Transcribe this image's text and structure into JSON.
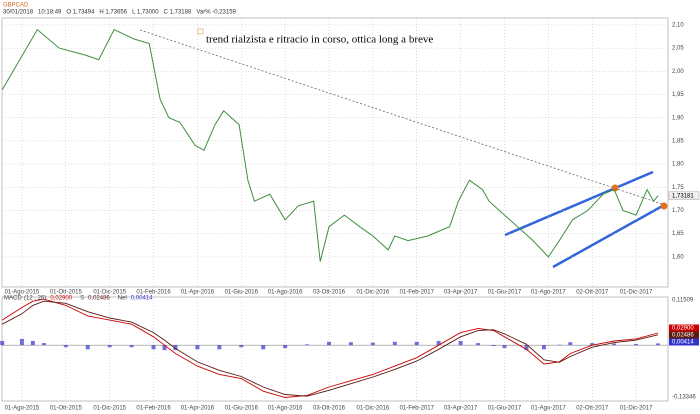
{
  "header": {
    "symbol": "GBPCAD",
    "fields": [
      "30/01/2018",
      "10:18:49",
      "O 1,73494",
      "H 1,73656",
      "L 1,73000",
      "C 1,73188",
      "Var% -0,23159"
    ]
  },
  "annotation": "trend rialzista e ritracio in corso, ottica long a breve",
  "chart_data": [
    {
      "type": "line",
      "xlim": [
        -0.909,
        29.455
      ],
      "xticks": [
        {
          "value": 0,
          "label": "01-Ago-2015"
        },
        {
          "value": 2,
          "label": "01-Ott-2015"
        },
        {
          "value": 4,
          "label": "01-Dic-2015"
        },
        {
          "value": 6,
          "label": "01-Feb-2016"
        },
        {
          "value": 8,
          "label": "01-Apr-2016"
        },
        {
          "value": 10,
          "label": "01-Giu-2016"
        },
        {
          "value": 12,
          "label": "01-Ago-2016"
        },
        {
          "value": 14,
          "label": "03-Ott-2016"
        },
        {
          "value": 16,
          "label": "01-Dic-2016"
        },
        {
          "value": 18,
          "label": "01-Feb-2017"
        },
        {
          "value": 20,
          "label": "03-Apr-2017"
        },
        {
          "value": 22,
          "label": "01-Giu-2017"
        },
        {
          "value": 24,
          "label": "01-Ago-2017"
        },
        {
          "value": 26,
          "label": "02-Ott-2017"
        },
        {
          "value": 28,
          "label": "01-Dic-2017"
        }
      ],
      "ylim": [
        1.535,
        2.115
      ],
      "yticks": [
        {
          "value": 1.6,
          "label": "1,60"
        },
        {
          "value": 1.65,
          "label": "1,65"
        },
        {
          "value": 1.7,
          "label": "1,70"
        },
        {
          "value": 1.75,
          "label": "1,75"
        },
        {
          "value": 1.8,
          "label": "1,80"
        },
        {
          "value": 1.85,
          "label": "1,85"
        },
        {
          "value": 1.9,
          "label": "1,90"
        },
        {
          "value": 1.95,
          "label": "1,95"
        },
        {
          "value": 2.0,
          "label": "2,00"
        },
        {
          "value": 2.05,
          "label": "2,05"
        },
        {
          "value": 2.1,
          "label": "2,10"
        }
      ],
      "grid": true,
      "series": [
        {
          "color": "#3f8f3f",
          "x": [
            -0.9,
            0.7,
            1.7,
            2.9,
            3.5,
            4.2,
            5.1,
            5.8,
            6.3,
            6.7,
            7.2,
            7.9,
            8.3,
            8.8,
            9.2,
            9.9,
            10.3,
            10.6,
            11.3,
            12,
            12.6,
            13.3,
            13.6,
            14,
            14.7,
            15.4,
            16,
            16.7,
            17,
            17.6,
            18.5,
            19.5,
            19.9,
            20.4,
            21,
            21.3,
            22,
            22.6,
            23.3,
            24,
            24.5,
            25.1,
            25.8,
            26.5,
            27,
            27.4,
            28,
            28.5,
            28.8,
            29.0
          ],
          "values": [
            1.96,
            2.09,
            2.05,
            2.035,
            2.025,
            2.09,
            2.07,
            2.06,
            1.94,
            1.9,
            1.89,
            1.84,
            1.83,
            1.885,
            1.915,
            1.885,
            1.765,
            1.72,
            1.735,
            1.68,
            1.71,
            1.72,
            1.59,
            1.665,
            1.69,
            1.665,
            1.645,
            1.615,
            1.645,
            1.635,
            1.645,
            1.665,
            1.72,
            1.765,
            1.745,
            1.72,
            1.69,
            1.665,
            1.635,
            1.6,
            1.635,
            1.68,
            1.7,
            1.735,
            1.745,
            1.7,
            1.69,
            1.745,
            1.72,
            1.73181
          ],
          "last_label": "1,73181"
        }
      ]
    },
    {
      "type": "line",
      "title": "MACD",
      "xlim": [
        -0.909,
        29.455
      ],
      "xticks": [
        {
          "value": 0,
          "label": "01-Ago-2015"
        },
        {
          "value": 2,
          "label": "01-Ott-2015"
        },
        {
          "value": 4,
          "label": "01-Dic-2015"
        },
        {
          "value": 6,
          "label": "01-Feb-2016"
        },
        {
          "value": 8,
          "label": "01-Apr-2016"
        },
        {
          "value": 10,
          "label": "01-Giu-2016"
        },
        {
          "value": 12,
          "label": "01-Ago-2016"
        },
        {
          "value": 14,
          "label": "03-Ott-2016"
        },
        {
          "value": 16,
          "label": "01-Dic-2016"
        },
        {
          "value": 18,
          "label": "01-Feb-2017"
        },
        {
          "value": 20,
          "label": "03-Apr-2017"
        },
        {
          "value": 22,
          "label": "01-Giu-2017"
        },
        {
          "value": 24,
          "label": "01-Ago-2017"
        },
        {
          "value": 26,
          "label": "02-Ott-2017"
        },
        {
          "value": 28,
          "label": "01-Dic-2017"
        }
      ],
      "ylim": [
        -0.13346,
        0.11509
      ],
      "yticks": [
        {
          "value": -0.13346,
          "label": "-0,13346"
        },
        {
          "value": 0.11509,
          "label": "0,11509"
        }
      ],
      "grid": true,
      "series": [
        {
          "name": "(12 , 26)",
          "color": "#cc0000",
          "style": "line",
          "x": [
            -0.9,
            0,
            0.5,
            1,
            2,
            3,
            4,
            5,
            6,
            6.5,
            7,
            8,
            9,
            10,
            11,
            12,
            13,
            14,
            15,
            16,
            17,
            18,
            19,
            20,
            20.8,
            21.5,
            22,
            23,
            23.8,
            24.5,
            25,
            26,
            27,
            28,
            29
          ],
          "values": [
            0.06,
            0.09,
            0.105,
            0.11,
            0.095,
            0.07,
            0.06,
            0.05,
            0.02,
            0,
            -0.02,
            -0.05,
            -0.07,
            -0.08,
            -0.11,
            -0.125,
            -0.12,
            -0.1,
            -0.085,
            -0.07,
            -0.05,
            -0.03,
            0,
            0.03,
            0.04,
            0.035,
            0.02,
            -0.01,
            -0.045,
            -0.04,
            -0.02,
            0,
            0.01,
            0.015,
            0.029
          ],
          "last_label": "0,02900"
        },
        {
          "name": "S",
          "color": "#5a1a10",
          "style": "line",
          "x": [
            -0.9,
            0,
            0.5,
            1,
            2,
            3,
            4,
            5,
            6,
            6.5,
            7,
            8,
            9,
            10,
            11,
            12,
            13,
            14,
            15,
            16,
            17,
            18,
            19,
            20,
            20.8,
            21.5,
            22,
            23,
            23.8,
            24.5,
            25,
            26,
            27,
            28,
            29
          ],
          "values": [
            0.05,
            0.075,
            0.095,
            0.105,
            0.1,
            0.08,
            0.065,
            0.055,
            0.03,
            0.012,
            -0.008,
            -0.04,
            -0.06,
            -0.075,
            -0.1,
            -0.118,
            -0.122,
            -0.108,
            -0.092,
            -0.076,
            -0.058,
            -0.038,
            -0.01,
            0.02,
            0.035,
            0.037,
            0.027,
            0.002,
            -0.035,
            -0.041,
            -0.027,
            -0.005,
            0.006,
            0.012,
            0.02486
          ],
          "last_label": "0,02486"
        },
        {
          "name": "Nel",
          "color": "#3333cc",
          "style": "bars",
          "x": [
            -0.9,
            0,
            0.5,
            1,
            2,
            3,
            4,
            5,
            6,
            6.5,
            7,
            8,
            9,
            10,
            11,
            12,
            13,
            14,
            15,
            16,
            17,
            18,
            19,
            20,
            20.8,
            21.5,
            22,
            23,
            23.8,
            24.5,
            25,
            26,
            27,
            28,
            29
          ],
          "values": [
            0.01,
            0.015,
            0.01,
            0.005,
            -0.005,
            -0.01,
            -0.005,
            -0.005,
            -0.01,
            -0.012,
            -0.012,
            -0.01,
            -0.01,
            -0.005,
            -0.01,
            -0.007,
            0.002,
            0.008,
            0.007,
            0.006,
            0.008,
            0.008,
            0.01,
            0.01,
            0.005,
            -0.002,
            -0.007,
            -0.012,
            -0.01,
            0.001,
            0.007,
            0.005,
            0.004,
            0.003,
            0.00414
          ],
          "last_label": "0,00414"
        }
      ]
    }
  ]
}
